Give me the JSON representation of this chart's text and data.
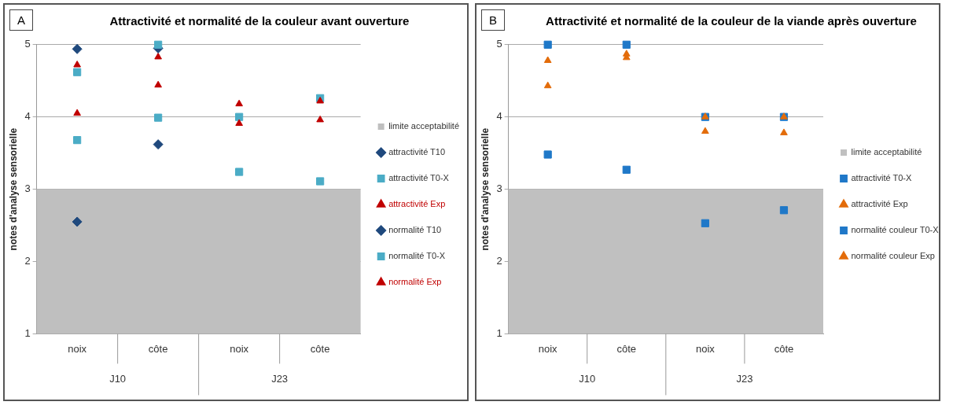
{
  "chart_data": [
    {
      "type": "scatter",
      "subtitle": "A",
      "title": "Attractivité et normalité de la couleur avant ouverture",
      "ylabel": "notes d'analyse sensorielle",
      "categories": [
        "noix",
        "côte",
        "noix",
        "côte"
      ],
      "annotations": [
        "J10",
        "J23"
      ],
      "ylim": [
        1,
        5
      ],
      "yticks": [
        1,
        2,
        3,
        4,
        5
      ],
      "grid": "y",
      "legend": "right",
      "bands": [
        {
          "axis": "y",
          "from": 1,
          "to": 3,
          "label": "limite acceptabilité",
          "color": "#bfbfbf"
        }
      ],
      "series": [
        {
          "name": "attractivité T10",
          "color": "#1f497d",
          "marker": "diamond",
          "values": [
            2.55,
            3.62,
            null,
            null
          ]
        },
        {
          "name": "attractivité T0-X",
          "color": "#4bacc6",
          "marker": "square",
          "values": [
            3.68,
            3.99,
            3.24,
            3.11
          ]
        },
        {
          "name": "attractivité Exp",
          "color": "#c00000",
          "marker": "triangle",
          "values": [
            4.72,
            4.83,
            4.18,
            3.96
          ]
        },
        {
          "name": "normalité T10",
          "color": "#1f497d",
          "marker": "diamond",
          "values": [
            4.94,
            4.95,
            null,
            null
          ]
        },
        {
          "name": "normalité T0-X",
          "color": "#4bacc6",
          "marker": "square",
          "values": [
            4.62,
            5.0,
            4.0,
            4.26
          ]
        },
        {
          "name": "normalité Exp",
          "color": "#c00000",
          "marker": "triangle",
          "values": [
            4.05,
            4.44,
            3.91,
            4.22
          ]
        }
      ]
    },
    {
      "type": "scatter",
      "subtitle": "B",
      "title": "Attractivité et normalité de la couleur de la viande après ouverture",
      "ylabel": "notes d'analyse sensorielle",
      "categories": [
        "noix",
        "côte",
        "noix",
        "côte"
      ],
      "annotations": [
        "J10",
        "J23"
      ],
      "ylim": [
        1,
        5
      ],
      "yticks": [
        1,
        2,
        3,
        4,
        5
      ],
      "grid": "y",
      "legend": "right",
      "bands": [
        {
          "axis": "y",
          "from": 1,
          "to": 3,
          "label": "limite acceptabilité",
          "color": "#c0c0c0"
        }
      ],
      "series": [
        {
          "name": "attractivité T0-X",
          "color": "#1f78c8",
          "marker": "square",
          "values": [
            3.48,
            3.27,
            2.53,
            2.71
          ]
        },
        {
          "name": "attractivité Exp",
          "color": "#e36c0a",
          "marker": "triangle",
          "values": [
            4.43,
            4.82,
            3.8,
            3.78
          ]
        },
        {
          "name": "normalité couleur T0-X",
          "color": "#1f78c8",
          "marker": "square",
          "values": [
            5.0,
            5.0,
            4.0,
            4.0
          ]
        },
        {
          "name": "normalité couleur Exp",
          "color": "#e36c0a",
          "marker": "triangle",
          "values": [
            4.78,
            4.87,
            4.0,
            4.0
          ]
        }
      ]
    }
  ]
}
